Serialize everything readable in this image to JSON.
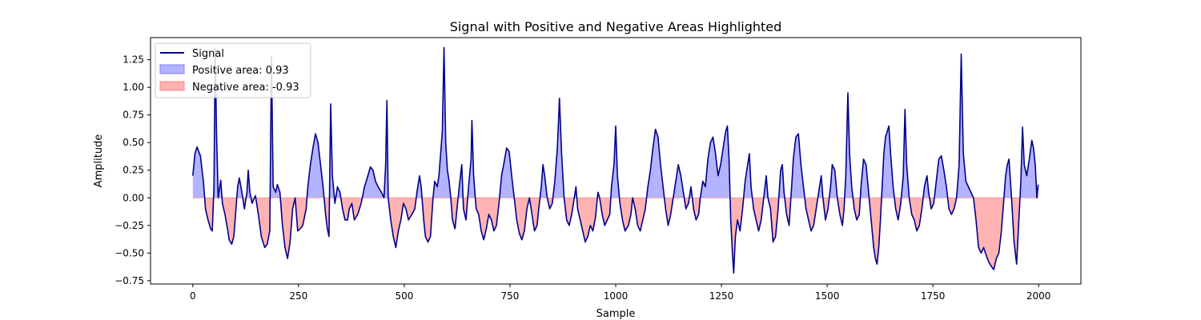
{
  "colors": {
    "signal": "#00008b",
    "positive_fill": "#b3b3ff",
    "positive_edge": "#8080ff",
    "negative_fill": "#ffb3b3",
    "negative_edge": "#ff8080",
    "axes": "#000000",
    "background": "#ffffff"
  },
  "chart_data": {
    "type": "area",
    "title": "Signal with Positive and Negative Areas Highlighted",
    "xlabel": "Sample",
    "ylabel": "Amplitude",
    "xlim": [
      -100,
      2100
    ],
    "ylim": [
      -0.78,
      1.45
    ],
    "xticks": [
      0,
      250,
      500,
      750,
      1000,
      1250,
      1500,
      1750,
      2000
    ],
    "yticks": [
      -0.75,
      -0.5,
      -0.25,
      0.0,
      0.25,
      0.5,
      0.75,
      1.0,
      1.25
    ],
    "ytick_labels": [
      "−0.75",
      "−0.50",
      "−0.25",
      "0.00",
      "0.25",
      "0.50",
      "0.75",
      "1.00",
      "1.25"
    ],
    "grid": false,
    "legend_position": "upper left",
    "legend": [
      {
        "label": "Signal",
        "kind": "line"
      },
      {
        "label": "Positive area: 0.93",
        "kind": "positive"
      },
      {
        "label": "Negative area: -0.93",
        "kind": "negative"
      }
    ],
    "signal_points": [
      [
        0,
        0.2
      ],
      [
        5,
        0.4
      ],
      [
        10,
        0.46
      ],
      [
        18,
        0.38
      ],
      [
        25,
        0.15
      ],
      [
        30,
        -0.1
      ],
      [
        36,
        -0.2
      ],
      [
        42,
        -0.28
      ],
      [
        46,
        -0.3
      ],
      [
        50,
        0.1
      ],
      [
        53,
        1.35
      ],
      [
        56,
        0.6
      ],
      [
        60,
        0.0
      ],
      [
        66,
        0.16
      ],
      [
        70,
        -0.05
      ],
      [
        76,
        -0.15
      ],
      [
        82,
        -0.28
      ],
      [
        86,
        -0.38
      ],
      [
        92,
        -0.42
      ],
      [
        97,
        -0.35
      ],
      [
        102,
        -0.1
      ],
      [
        106,
        0.1
      ],
      [
        110,
        0.18
      ],
      [
        116,
        0.05
      ],
      [
        122,
        -0.1
      ],
      [
        128,
        0.05
      ],
      [
        131,
        0.25
      ],
      [
        135,
        0.05
      ],
      [
        140,
        -0.05
      ],
      [
        148,
        0.02
      ],
      [
        155,
        -0.15
      ],
      [
        162,
        -0.35
      ],
      [
        170,
        -0.45
      ],
      [
        176,
        -0.42
      ],
      [
        182,
        -0.3
      ],
      [
        186,
        1.28
      ],
      [
        190,
        0.1
      ],
      [
        196,
        0.05
      ],
      [
        200,
        0.12
      ],
      [
        206,
        0.05
      ],
      [
        212,
        -0.25
      ],
      [
        218,
        -0.45
      ],
      [
        224,
        -0.55
      ],
      [
        230,
        -0.4
      ],
      [
        236,
        -0.1
      ],
      [
        242,
        0.0
      ],
      [
        248,
        -0.3
      ],
      [
        254,
        -0.28
      ],
      [
        260,
        -0.25
      ],
      [
        268,
        -0.1
      ],
      [
        272,
        0.1
      ],
      [
        278,
        0.3
      ],
      [
        284,
        0.45
      ],
      [
        290,
        0.58
      ],
      [
        296,
        0.5
      ],
      [
        302,
        0.3
      ],
      [
        308,
        0.1
      ],
      [
        314,
        -0.15
      ],
      [
        318,
        -0.28
      ],
      [
        322,
        -0.35
      ],
      [
        326,
        0.85
      ],
      [
        330,
        0.2
      ],
      [
        336,
        -0.05
      ],
      [
        342,
        0.1
      ],
      [
        348,
        0.05
      ],
      [
        354,
        -0.1
      ],
      [
        360,
        -0.2
      ],
      [
        366,
        -0.2
      ],
      [
        370,
        -0.1
      ],
      [
        376,
        -0.05
      ],
      [
        382,
        -0.2
      ],
      [
        390,
        -0.15
      ],
      [
        398,
        -0.05
      ],
      [
        406,
        0.1
      ],
      [
        414,
        0.2
      ],
      [
        420,
        0.28
      ],
      [
        426,
        0.25
      ],
      [
        432,
        0.15
      ],
      [
        438,
        0.1
      ],
      [
        446,
        0.05
      ],
      [
        452,
        0.0
      ],
      [
        456,
        0.3
      ],
      [
        459,
        0.88
      ],
      [
        462,
        0.0
      ],
      [
        468,
        -0.2
      ],
      [
        474,
        -0.35
      ],
      [
        480,
        -0.45
      ],
      [
        486,
        -0.3
      ],
      [
        492,
        -0.2
      ],
      [
        498,
        -0.05
      ],
      [
        504,
        -0.1
      ],
      [
        510,
        -0.2
      ],
      [
        518,
        -0.15
      ],
      [
        525,
        -0.1
      ],
      [
        530,
        0.05
      ],
      [
        536,
        0.2
      ],
      [
        540,
        0.1
      ],
      [
        546,
        -0.2
      ],
      [
        550,
        -0.35
      ],
      [
        556,
        -0.4
      ],
      [
        562,
        -0.35
      ],
      [
        568,
        0.0
      ],
      [
        572,
        0.15
      ],
      [
        578,
        0.1
      ],
      [
        582,
        0.2
      ],
      [
        586,
        0.4
      ],
      [
        590,
        0.6
      ],
      [
        594,
        1.36
      ],
      [
        598,
        0.5
      ],
      [
        602,
        0.25
      ],
      [
        606,
        0.15
      ],
      [
        610,
        0.0
      ],
      [
        614,
        -0.2
      ],
      [
        620,
        -0.28
      ],
      [
        626,
        -0.05
      ],
      [
        630,
        0.1
      ],
      [
        636,
        0.3
      ],
      [
        640,
        -0.1
      ],
      [
        646,
        -0.2
      ],
      [
        652,
        0.1
      ],
      [
        658,
        0.35
      ],
      [
        660,
        0.7
      ],
      [
        664,
        0.2
      ],
      [
        670,
        -0.1
      ],
      [
        676,
        -0.15
      ],
      [
        682,
        -0.3
      ],
      [
        688,
        -0.38
      ],
      [
        694,
        -0.28
      ],
      [
        700,
        -0.15
      ],
      [
        706,
        -0.2
      ],
      [
        712,
        -0.3
      ],
      [
        718,
        -0.25
      ],
      [
        724,
        -0.05
      ],
      [
        730,
        0.2
      ],
      [
        736,
        0.32
      ],
      [
        742,
        0.45
      ],
      [
        748,
        0.42
      ],
      [
        754,
        0.2
      ],
      [
        760,
        0.0
      ],
      [
        766,
        -0.2
      ],
      [
        772,
        -0.32
      ],
      [
        778,
        -0.38
      ],
      [
        784,
        -0.3
      ],
      [
        790,
        -0.1
      ],
      [
        796,
        0.0
      ],
      [
        802,
        -0.15
      ],
      [
        808,
        -0.3
      ],
      [
        814,
        -0.25
      ],
      [
        818,
        -0.1
      ],
      [
        824,
        0.1
      ],
      [
        828,
        0.3
      ],
      [
        832,
        0.2
      ],
      [
        838,
        0.0
      ],
      [
        844,
        -0.1
      ],
      [
        850,
        -0.05
      ],
      [
        856,
        0.15
      ],
      [
        862,
        0.45
      ],
      [
        867,
        0.9
      ],
      [
        872,
        0.4
      ],
      [
        878,
        0.0
      ],
      [
        884,
        -0.2
      ],
      [
        890,
        -0.25
      ],
      [
        896,
        -0.15
      ],
      [
        902,
        0.0
      ],
      [
        906,
        0.1
      ],
      [
        910,
        -0.1
      ],
      [
        916,
        -0.2
      ],
      [
        922,
        -0.3
      ],
      [
        928,
        -0.4
      ],
      [
        934,
        -0.35
      ],
      [
        940,
        -0.25
      ],
      [
        946,
        -0.3
      ],
      [
        952,
        -0.18
      ],
      [
        958,
        0.05
      ],
      [
        962,
        0.0
      ],
      [
        968,
        -0.15
      ],
      [
        974,
        -0.25
      ],
      [
        980,
        -0.2
      ],
      [
        986,
        -0.15
      ],
      [
        990,
        0.1
      ],
      [
        996,
        0.3
      ],
      [
        1000,
        0.65
      ],
      [
        1004,
        0.2
      ],
      [
        1010,
        -0.05
      ],
      [
        1016,
        -0.2
      ],
      [
        1022,
        -0.3
      ],
      [
        1030,
        -0.25
      ],
      [
        1036,
        -0.15
      ],
      [
        1040,
        0.0
      ],
      [
        1046,
        -0.1
      ],
      [
        1052,
        -0.25
      ],
      [
        1058,
        -0.3
      ],
      [
        1064,
        -0.2
      ],
      [
        1070,
        -0.1
      ],
      [
        1076,
        0.1
      ],
      [
        1082,
        0.25
      ],
      [
        1088,
        0.45
      ],
      [
        1094,
        0.62
      ],
      [
        1100,
        0.55
      ],
      [
        1106,
        0.3
      ],
      [
        1112,
        0.1
      ],
      [
        1118,
        -0.1
      ],
      [
        1124,
        -0.25
      ],
      [
        1130,
        -0.15
      ],
      [
        1136,
        0.0
      ],
      [
        1142,
        0.15
      ],
      [
        1148,
        0.3
      ],
      [
        1154,
        0.2
      ],
      [
        1160,
        0.05
      ],
      [
        1166,
        -0.1
      ],
      [
        1172,
        -0.05
      ],
      [
        1178,
        0.1
      ],
      [
        1184,
        -0.1
      ],
      [
        1190,
        -0.2
      ],
      [
        1196,
        -0.15
      ],
      [
        1200,
        0.0
      ],
      [
        1206,
        0.15
      ],
      [
        1212,
        0.1
      ],
      [
        1218,
        0.35
      ],
      [
        1224,
        0.5
      ],
      [
        1230,
        0.55
      ],
      [
        1236,
        0.4
      ],
      [
        1242,
        0.2
      ],
      [
        1248,
        0.3
      ],
      [
        1254,
        0.45
      ],
      [
        1260,
        0.6
      ],
      [
        1264,
        0.65
      ],
      [
        1268,
        0.35
      ],
      [
        1272,
        -0.2
      ],
      [
        1276,
        -0.5
      ],
      [
        1279,
        -0.68
      ],
      [
        1283,
        -0.35
      ],
      [
        1288,
        -0.2
      ],
      [
        1294,
        -0.3
      ],
      [
        1300,
        -0.1
      ],
      [
        1306,
        0.15
      ],
      [
        1312,
        0.3
      ],
      [
        1316,
        0.4
      ],
      [
        1320,
        0.1
      ],
      [
        1326,
        -0.1
      ],
      [
        1332,
        -0.2
      ],
      [
        1338,
        -0.3
      ],
      [
        1344,
        -0.2
      ],
      [
        1350,
        0.0
      ],
      [
        1356,
        0.2
      ],
      [
        1360,
        0.0
      ],
      [
        1366,
        -0.1
      ],
      [
        1372,
        -0.4
      ],
      [
        1378,
        -0.35
      ],
      [
        1384,
        -0.1
      ],
      [
        1390,
        0.25
      ],
      [
        1394,
        0.3
      ],
      [
        1398,
        0.05
      ],
      [
        1404,
        -0.15
      ],
      [
        1410,
        -0.25
      ],
      [
        1416,
        0.1
      ],
      [
        1420,
        0.35
      ],
      [
        1426,
        0.55
      ],
      [
        1432,
        0.58
      ],
      [
        1438,
        0.3
      ],
      [
        1444,
        0.1
      ],
      [
        1450,
        -0.1
      ],
      [
        1456,
        -0.2
      ],
      [
        1462,
        -0.3
      ],
      [
        1468,
        -0.25
      ],
      [
        1474,
        -0.1
      ],
      [
        1480,
        0.05
      ],
      [
        1486,
        0.2
      ],
      [
        1490,
        0.0
      ],
      [
        1496,
        -0.2
      ],
      [
        1502,
        -0.1
      ],
      [
        1508,
        0.1
      ],
      [
        1512,
        0.3
      ],
      [
        1518,
        0.25
      ],
      [
        1524,
        0.0
      ],
      [
        1530,
        -0.15
      ],
      [
        1536,
        -0.25
      ],
      [
        1540,
        -0.1
      ],
      [
        1544,
        0.2
      ],
      [
        1549,
        0.95
      ],
      [
        1553,
        0.4
      ],
      [
        1558,
        0.1
      ],
      [
        1564,
        -0.1
      ],
      [
        1570,
        -0.2
      ],
      [
        1576,
        -0.15
      ],
      [
        1580,
        0.1
      ],
      [
        1586,
        0.35
      ],
      [
        1592,
        0.3
      ],
      [
        1598,
        0.05
      ],
      [
        1604,
        -0.2
      ],
      [
        1610,
        -0.45
      ],
      [
        1614,
        -0.55
      ],
      [
        1618,
        -0.6
      ],
      [
        1622,
        -0.45
      ],
      [
        1626,
        -0.2
      ],
      [
        1630,
        0.1
      ],
      [
        1634,
        0.4
      ],
      [
        1638,
        0.55
      ],
      [
        1642,
        0.6
      ],
      [
        1646,
        0.65
      ],
      [
        1650,
        0.4
      ],
      [
        1656,
        0.1
      ],
      [
        1662,
        -0.1
      ],
      [
        1668,
        -0.2
      ],
      [
        1674,
        -0.05
      ],
      [
        1680,
        0.2
      ],
      [
        1684,
        0.8
      ],
      [
        1688,
        0.3
      ],
      [
        1694,
        0.0
      ],
      [
        1700,
        -0.15
      ],
      [
        1706,
        -0.2
      ],
      [
        1712,
        -0.3
      ],
      [
        1718,
        -0.25
      ],
      [
        1724,
        -0.1
      ],
      [
        1730,
        0.1
      ],
      [
        1736,
        0.2
      ],
      [
        1740,
        0.05
      ],
      [
        1746,
        -0.1
      ],
      [
        1752,
        -0.05
      ],
      [
        1758,
        0.15
      ],
      [
        1764,
        0.35
      ],
      [
        1770,
        0.38
      ],
      [
        1776,
        0.25
      ],
      [
        1782,
        0.1
      ],
      [
        1788,
        -0.1
      ],
      [
        1794,
        -0.15
      ],
      [
        1800,
        -0.1
      ],
      [
        1806,
        0.0
      ],
      [
        1812,
        0.3
      ],
      [
        1817,
        1.3
      ],
      [
        1822,
        0.4
      ],
      [
        1828,
        0.15
      ],
      [
        1834,
        0.1
      ],
      [
        1840,
        0.05
      ],
      [
        1846,
        0.0
      ],
      [
        1852,
        -0.2
      ],
      [
        1858,
        -0.45
      ],
      [
        1864,
        -0.5
      ],
      [
        1870,
        -0.45
      ],
      [
        1876,
        -0.52
      ],
      [
        1882,
        -0.58
      ],
      [
        1888,
        -0.62
      ],
      [
        1894,
        -0.65
      ],
      [
        1900,
        -0.55
      ],
      [
        1906,
        -0.5
      ],
      [
        1912,
        -0.3
      ],
      [
        1918,
        0.0
      ],
      [
        1922,
        0.2
      ],
      [
        1926,
        0.3
      ],
      [
        1930,
        0.35
      ],
      [
        1936,
        0.0
      ],
      [
        1942,
        -0.4
      ],
      [
        1948,
        -0.6
      ],
      [
        1952,
        -0.3
      ],
      [
        1958,
        0.15
      ],
      [
        1962,
        0.64
      ],
      [
        1966,
        0.3
      ],
      [
        1972,
        0.2
      ],
      [
        1978,
        0.35
      ],
      [
        1984,
        0.52
      ],
      [
        1988,
        0.45
      ],
      [
        1992,
        0.3
      ],
      [
        1996,
        0.0
      ],
      [
        1999,
        0.12
      ]
    ]
  }
}
